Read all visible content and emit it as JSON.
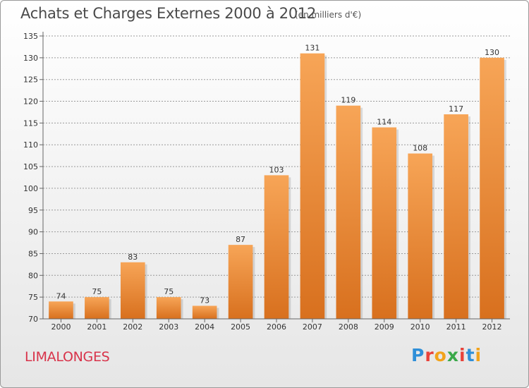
{
  "header": {
    "title": "Achats et Charges Externes 2000 à 2012",
    "subtitle": "(en milliers d'€)"
  },
  "footer": {
    "town": "LIMALONGES",
    "logo_letters": [
      "P",
      "r",
      "o",
      "x",
      "i",
      "t",
      "i"
    ],
    "logo_colors": [
      "#2f8fd8",
      "#e8423a",
      "#f2a31b",
      "#3aa84a",
      "#e8423a",
      "#2f8fd8",
      "#f2a31b"
    ]
  },
  "colors": {
    "bar_light": "#f7a557",
    "bar_dark": "#d8701e",
    "axis": "#666666",
    "grid": "#9a9a9a",
    "title": "#4a4a4a",
    "town": "#d8334a"
  },
  "chart_data": {
    "type": "bar",
    "title": "Achats et Charges Externes 2000 à 2012",
    "subtitle": "(en milliers d'€)",
    "categories": [
      "2000",
      "2001",
      "2002",
      "2003",
      "2004",
      "2005",
      "2006",
      "2007",
      "2008",
      "2009",
      "2010",
      "2011",
      "2012"
    ],
    "values": [
      74,
      75,
      83,
      75,
      73,
      87,
      103,
      131,
      119,
      114,
      108,
      117,
      130
    ],
    "ylim": [
      70,
      135
    ],
    "yticks": [
      70,
      75,
      80,
      85,
      90,
      95,
      100,
      105,
      110,
      115,
      120,
      125,
      130,
      135
    ],
    "xlabel": "",
    "ylabel": "",
    "grid": "horizontal dashed"
  }
}
